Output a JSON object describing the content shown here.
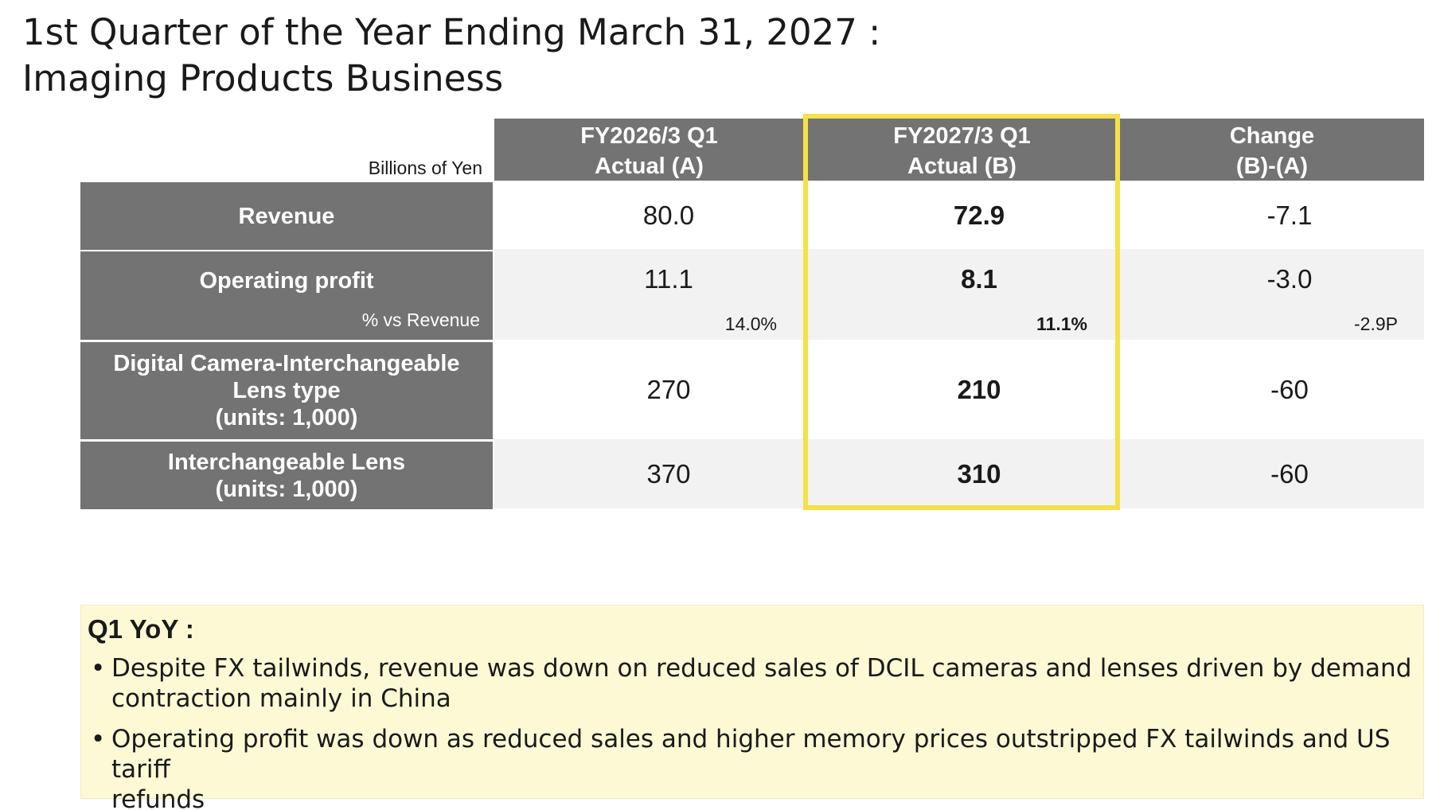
{
  "title_line1": "1st Quarter of the Year Ending March 31, 2027 :",
  "title_line2": "Imaging Products Business",
  "units": "Billions of Yen",
  "columns": [
    {
      "line1": "FY2026/3 Q1",
      "line2": "Actual (A)"
    },
    {
      "line1": "FY2027/3 Q1",
      "line2": "Actual (B)"
    },
    {
      "line1": "Change",
      "line2": "(B)-(A)"
    }
  ],
  "rows": {
    "revenue": {
      "label": "Revenue",
      "a": "80.0",
      "b": "72.9",
      "change": "-7.1"
    },
    "operating_profit": {
      "label": "Operating profit",
      "a": "11.1",
      "b": "8.1",
      "change": "-3.0",
      "sub_label": "% vs Revenue",
      "a_pct": "14.0%",
      "b_pct": "11.1%",
      "change_pct": "-2.9P"
    },
    "dcil": {
      "label_line1": "Digital Camera-Interchangeable",
      "label_line2": "Lens type",
      "label_line3": "(units: 1,000)",
      "a": "270",
      "b": "210",
      "change": "-60"
    },
    "lens": {
      "label_line1": "Interchangeable Lens",
      "label_line2": "(units: 1,000)",
      "a": "370",
      "b": "310",
      "change": "-60"
    }
  },
  "highlight_color": "#f5e04a",
  "header_color": "#737373",
  "note": {
    "heading": "Q1 YoY :",
    "bullet": "•",
    "items": [
      {
        "line1": "Despite FX tailwinds, revenue was down on reduced sales of DCIL cameras and lenses driven by demand",
        "line2": "contraction mainly in China"
      },
      {
        "line1": "Operating profit was down as reduced sales and higher memory prices outstripped FX tailwinds and US tariff",
        "line2": "refunds"
      }
    ]
  }
}
